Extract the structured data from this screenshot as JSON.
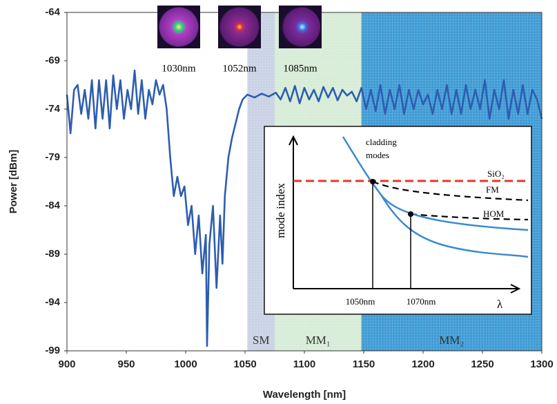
{
  "chart_data": {
    "type": "line",
    "x_label": "Wavelength [nm]",
    "y_label": "Power [dBm]",
    "xlim": [
      900,
      1300
    ],
    "xticks": [
      900,
      950,
      1000,
      1050,
      1100,
      1150,
      1200,
      1250,
      1300
    ],
    "ylim": [
      -99,
      -64
    ],
    "yticks": [
      -64,
      -69,
      -74,
      -79,
      -84,
      -89,
      -94,
      -99
    ],
    "x": [
      900,
      903,
      906,
      909,
      912,
      915,
      918,
      921,
      924,
      927,
      930,
      933,
      936,
      939,
      942,
      945,
      948,
      951,
      954,
      957,
      960,
      963,
      966,
      969,
      972,
      975,
      978,
      981,
      984,
      987,
      990,
      993,
      996,
      999,
      1002,
      1005,
      1008,
      1011,
      1014,
      1017,
      1018,
      1020,
      1023,
      1026,
      1029,
      1031,
      1033,
      1036,
      1039,
      1042,
      1045,
      1048,
      1052,
      1058,
      1064,
      1070,
      1076,
      1080,
      1084,
      1088,
      1092,
      1096,
      1100,
      1104,
      1108,
      1112,
      1116,
      1120,
      1124,
      1128,
      1132,
      1136,
      1140,
      1144,
      1148,
      1152,
      1156,
      1160,
      1164,
      1168,
      1172,
      1176,
      1180,
      1184,
      1188,
      1192,
      1196,
      1200,
      1204,
      1208,
      1212,
      1216,
      1220,
      1224,
      1228,
      1232,
      1236,
      1240,
      1244,
      1248,
      1252,
      1256,
      1260,
      1264,
      1268,
      1272,
      1276,
      1280,
      1284,
      1288,
      1292,
      1296,
      1300
    ],
    "series": [
      {
        "color": "#2d5db0",
        "values": [
          -72.5,
          -76.5,
          -72,
          -71.5,
          -74.5,
          -72,
          -75,
          -71,
          -76,
          -71,
          -75,
          -71,
          -76,
          -70.5,
          -74,
          -71,
          -75,
          -72,
          -74,
          -70,
          -74.5,
          -71,
          -75,
          -72,
          -73.5,
          -71,
          -72.5,
          -71.5,
          -74,
          -79,
          -83,
          -81,
          -83,
          -82,
          -86,
          -84,
          -89,
          -85,
          -91,
          -87,
          -98.5,
          -88,
          -84,
          -92.5,
          -85,
          -90,
          -83,
          -79,
          -77,
          -75.5,
          -74,
          -73,
          -72.5,
          -72.8,
          -72.4,
          -72.7,
          -72.3,
          -73,
          -71.8,
          -73.2,
          -71.6,
          -73.4,
          -71.8,
          -73,
          -72,
          -73.2,
          -71.7,
          -72.8,
          -71.8,
          -73.1,
          -72,
          -72.6,
          -72.2,
          -73.2,
          -71.8,
          -74,
          -72,
          -74.2,
          -71.5,
          -74.5,
          -72,
          -74,
          -71.5,
          -74.5,
          -72,
          -74,
          -72,
          -73.5,
          -72.5,
          -74.5,
          -72,
          -74,
          -71.5,
          -74.5,
          -72,
          -74.5,
          -71.5,
          -74,
          -72,
          -74,
          -71,
          -75,
          -72,
          -74,
          -71,
          -75,
          -72,
          -74.5,
          -71.5,
          -74.5,
          -72,
          -73,
          -75
        ]
      }
    ],
    "regions": [
      {
        "name": "SM",
        "from": 1052,
        "to": 1075,
        "color": "#c8d2e4"
      },
      {
        "name": "MM₁",
        "from": 1075,
        "to": 1148,
        "color": "#d6ecd6"
      },
      {
        "name": "MM₂",
        "from": 1148,
        "to": 1300,
        "color": "#3d9ad4"
      }
    ],
    "mode_images": [
      "1030nm",
      "1052nm",
      "1085nm"
    ],
    "inset": {
      "y_label": "mode index",
      "x_label": "λ",
      "cladding": [
        "cladding",
        "modes"
      ],
      "sio2": "SiO₂",
      "fm": "FM",
      "hom": "HOM",
      "mark1": "1050nm",
      "mark2": "1070nm"
    }
  }
}
